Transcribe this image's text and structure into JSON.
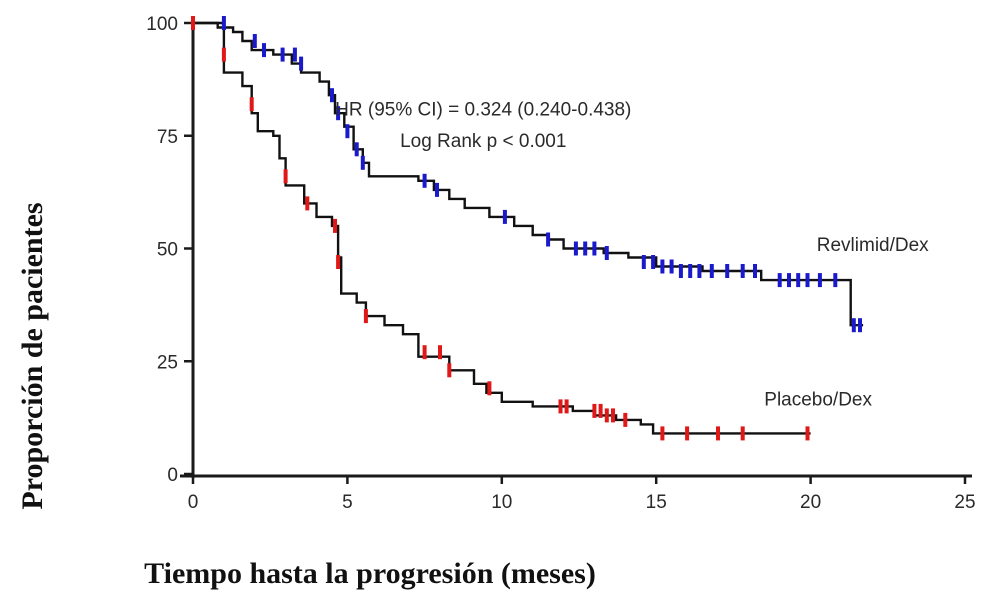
{
  "chart_data": {
    "type": "line",
    "xlabel": "Tiempo hasta la progresión (meses)",
    "ylabel": "Proporción de pacientes",
    "xlim": [
      0,
      25
    ],
    "ylim": [
      0,
      100
    ],
    "xticks": [
      0,
      5,
      10,
      15,
      20,
      25
    ],
    "yticks": [
      0,
      25,
      50,
      75,
      100
    ],
    "grid": false,
    "annotations": [
      {
        "text": "HR (95% CI) = 0.324 (0.240-0.438)",
        "x": 9.4,
        "y": 79.5
      },
      {
        "text": "Log Rank p < 0.001",
        "x": 9.4,
        "y": 72.5
      }
    ],
    "series": [
      {
        "name": "Revlimid/Dex",
        "color": "#1a1acc",
        "label_pos": {
          "x": 20.2,
          "y": 49.5
        },
        "steps": [
          [
            0,
            100
          ],
          [
            0.8,
            99
          ],
          [
            1.3,
            98
          ],
          [
            1.6,
            96
          ],
          [
            1.9,
            94
          ],
          [
            2.6,
            93
          ],
          [
            3.2,
            91
          ],
          [
            3.5,
            89
          ],
          [
            4.1,
            87
          ],
          [
            4.4,
            84
          ],
          [
            4.6,
            80
          ],
          [
            4.9,
            77
          ],
          [
            5.2,
            72
          ],
          [
            5.5,
            69
          ],
          [
            5.7,
            66
          ],
          [
            7.3,
            65
          ],
          [
            7.8,
            63
          ],
          [
            8.3,
            61
          ],
          [
            8.8,
            59
          ],
          [
            9.6,
            57
          ],
          [
            10.4,
            55
          ],
          [
            11.0,
            53
          ],
          [
            11.5,
            52
          ],
          [
            12.0,
            50
          ],
          [
            13.3,
            49
          ],
          [
            14.1,
            48
          ],
          [
            15.0,
            46
          ],
          [
            16.5,
            45
          ],
          [
            18.4,
            43
          ],
          [
            21.2,
            43
          ],
          [
            21.3,
            33
          ],
          [
            21.7,
            33
          ]
        ],
        "censored": [
          [
            1,
            100
          ],
          [
            2,
            96
          ],
          [
            2.3,
            94
          ],
          [
            2.9,
            93
          ],
          [
            3.3,
            93
          ],
          [
            3.5,
            91
          ],
          [
            4.5,
            84
          ],
          [
            4.7,
            80
          ],
          [
            5,
            76
          ],
          [
            5.3,
            72
          ],
          [
            5.5,
            69
          ],
          [
            7.5,
            65
          ],
          [
            7.9,
            63
          ],
          [
            10.1,
            57
          ],
          [
            11.5,
            52
          ],
          [
            12.4,
            50
          ],
          [
            12.7,
            50
          ],
          [
            13.0,
            50
          ],
          [
            13.4,
            49
          ],
          [
            14.6,
            47
          ],
          [
            14.9,
            47
          ],
          [
            15.2,
            46
          ],
          [
            15.5,
            46
          ],
          [
            15.8,
            45
          ],
          [
            16.1,
            45
          ],
          [
            16.4,
            45
          ],
          [
            16.8,
            45
          ],
          [
            17.3,
            45
          ],
          [
            17.8,
            45
          ],
          [
            18.2,
            45
          ],
          [
            19.0,
            43
          ],
          [
            19.3,
            43
          ],
          [
            19.6,
            43
          ],
          [
            19.9,
            43
          ],
          [
            20.3,
            43
          ],
          [
            20.8,
            43
          ],
          [
            21.4,
            33
          ],
          [
            21.6,
            33
          ]
        ]
      },
      {
        "name": "Placebo/Dex",
        "color": "#e01818",
        "label_pos": {
          "x": 18.5,
          "y": 15.2
        },
        "steps": [
          [
            0,
            100
          ],
          [
            1.0,
            89
          ],
          [
            1.6,
            86
          ],
          [
            1.9,
            80
          ],
          [
            2.1,
            76
          ],
          [
            2.6,
            75
          ],
          [
            2.8,
            70
          ],
          [
            3.0,
            64
          ],
          [
            3.6,
            60
          ],
          [
            4.0,
            57
          ],
          [
            4.5,
            55
          ],
          [
            4.7,
            48
          ],
          [
            4.8,
            40
          ],
          [
            5.3,
            38
          ],
          [
            5.6,
            35
          ],
          [
            6.2,
            33
          ],
          [
            6.8,
            31
          ],
          [
            7.3,
            26
          ],
          [
            8.3,
            23
          ],
          [
            9.1,
            20
          ],
          [
            9.5,
            18
          ],
          [
            10.0,
            16
          ],
          [
            11.0,
            15
          ],
          [
            12.3,
            14
          ],
          [
            13.0,
            13
          ],
          [
            13.7,
            12
          ],
          [
            14.5,
            11
          ],
          [
            14.9,
            9
          ],
          [
            20.0,
            9
          ]
        ],
        "censored": [
          [
            0,
            100
          ],
          [
            1.0,
            93
          ],
          [
            1.9,
            82
          ],
          [
            3.0,
            66
          ],
          [
            3.7,
            60
          ],
          [
            4.6,
            55
          ],
          [
            4.7,
            47
          ],
          [
            5.6,
            35
          ],
          [
            7.5,
            27
          ],
          [
            8.0,
            27
          ],
          [
            8.3,
            23
          ],
          [
            9.6,
            19
          ],
          [
            11.9,
            15
          ],
          [
            12.1,
            15
          ],
          [
            13.0,
            14
          ],
          [
            13.2,
            14
          ],
          [
            13.4,
            13
          ],
          [
            13.6,
            13
          ],
          [
            14.0,
            12
          ],
          [
            15.2,
            9
          ],
          [
            16.0,
            9
          ],
          [
            17.0,
            9
          ],
          [
            17.8,
            9
          ],
          [
            19.9,
            9
          ]
        ]
      }
    ]
  }
}
